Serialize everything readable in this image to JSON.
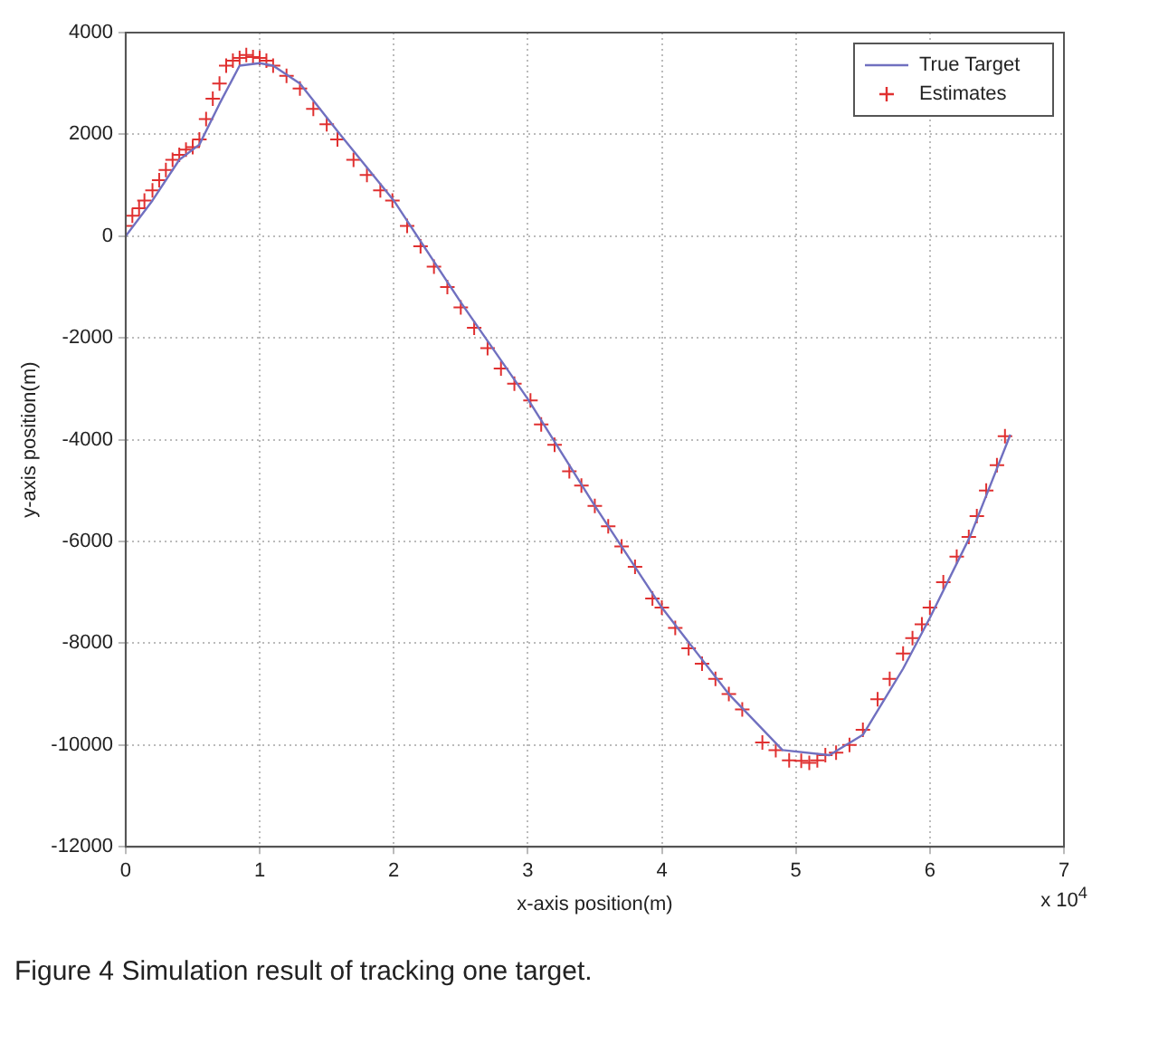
{
  "chart_data": {
    "type": "line",
    "xlabel": "x-axis position(m)",
    "ylabel": "y-axis position(m)",
    "xlim": [
      0,
      7
    ],
    "xticks": [
      0,
      1,
      2,
      3,
      4,
      5,
      6,
      7
    ],
    "ylim": [
      -12000,
      4000
    ],
    "yticks": [
      -12000,
      -10000,
      -8000,
      -6000,
      -4000,
      -2000,
      0,
      2000,
      4000
    ],
    "grid": true,
    "legend": "top right",
    "annotations": [
      "x 10$^{4}$",
      "Figure 4 Simulation result of tracking one target."
    ],
    "series": [
      {
        "name": "True Target",
        "type": "line",
        "color": "#7070c0",
        "marker": "none",
        "line_style": "solid",
        "x": [
          0,
          0.2,
          0.4,
          0.55,
          0.7,
          0.85,
          1.0,
          1.1,
          1.3,
          1.6,
          2.0,
          2.5,
          3.0,
          3.5,
          4.0,
          4.5,
          4.9,
          5.25,
          5.5,
          5.8,
          6.0,
          6.3,
          6.6
        ],
        "values": [
          0,
          700,
          1500,
          1800,
          2600,
          3350,
          3400,
          3350,
          3000,
          2000,
          700,
          -1300,
          -3200,
          -5300,
          -7300,
          -9000,
          -10100,
          -10200,
          -9800,
          -8500,
          -7500,
          -5900,
          -3900
        ]
      },
      {
        "name": "Estimates",
        "type": "scatter",
        "color": "#e03030",
        "marker": "cross",
        "x": [
          0,
          0.05,
          0.1,
          0.14,
          0.2,
          0.25,
          0.3,
          0.35,
          0.4,
          0.45,
          0.5,
          0.55,
          0.6,
          0.65,
          0.7,
          0.75,
          0.8,
          0.85,
          0.9,
          0.95,
          1.0,
          1.05,
          1.1,
          1.2,
          1.3,
          1.4,
          1.5,
          1.58,
          1.7,
          1.8,
          1.9,
          1.99,
          2.1,
          2.2,
          2.3,
          2.4,
          2.5,
          2.6,
          2.7,
          2.8,
          2.9,
          3.02,
          3.1,
          3.2,
          3.31,
          3.4,
          3.5,
          3.6,
          3.7,
          3.8,
          3.93,
          4.0,
          4.1,
          4.2,
          4.3,
          4.4,
          4.5,
          4.6,
          4.75,
          4.85,
          4.95,
          5.04,
          5.1,
          5.16,
          5.22,
          5.3,
          5.4,
          5.5,
          5.61,
          5.7,
          5.8,
          5.87,
          5.94,
          6.0,
          6.1,
          6.2,
          6.29,
          6.35,
          6.42,
          6.5,
          6.56
        ],
        "values": [
          200,
          400,
          550,
          700,
          900,
          1100,
          1300,
          1500,
          1600,
          1700,
          1750,
          1900,
          2300,
          2700,
          3000,
          3350,
          3450,
          3500,
          3560,
          3520,
          3500,
          3450,
          3350,
          3150,
          2900,
          2500,
          2200,
          1900,
          1500,
          1200,
          900,
          700,
          200,
          -200,
          -600,
          -1000,
          -1400,
          -1800,
          -2200,
          -2600,
          -2900,
          -3230,
          -3700,
          -4100,
          -4620,
          -4900,
          -5300,
          -5700,
          -6100,
          -6500,
          -7120,
          -7300,
          -7700,
          -8100,
          -8400,
          -8700,
          -9000,
          -9300,
          -9950,
          -10100,
          -10300,
          -10310,
          -10350,
          -10300,
          -10200,
          -10150,
          -10000,
          -9700,
          -9100,
          -8700,
          -8200,
          -7900,
          -7630,
          -7300,
          -6800,
          -6300,
          -5910,
          -5500,
          -5000,
          -4500,
          -3930
        ]
      }
    ]
  }
}
